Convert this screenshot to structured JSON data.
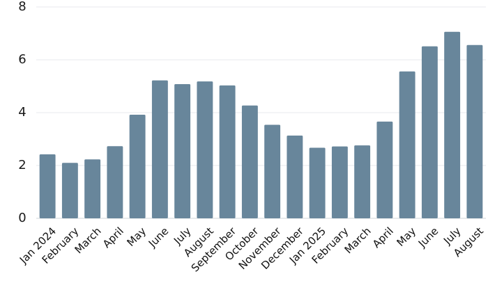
{
  "chart_data": {
    "type": "bar",
    "title": "",
    "xlabel": "",
    "ylabel": "",
    "ylim": [
      0,
      8
    ],
    "yticks": [
      0,
      2,
      4,
      6,
      8
    ],
    "grid": true,
    "bar_color": "#68869b",
    "categories": [
      "Jan 2024",
      "February",
      "March",
      "April",
      "May",
      "June",
      "July",
      "August",
      "September",
      "October",
      "November",
      "December",
      "Jan 2025",
      "February",
      "March",
      "April",
      "May",
      "June",
      "July",
      "August"
    ],
    "values": [
      2.42,
      2.1,
      2.23,
      2.73,
      3.92,
      5.22,
      5.08,
      5.18,
      5.03,
      4.27,
      3.54,
      3.13,
      2.67,
      2.72,
      2.76,
      3.66,
      5.56,
      6.51,
      7.06,
      6.56
    ]
  }
}
